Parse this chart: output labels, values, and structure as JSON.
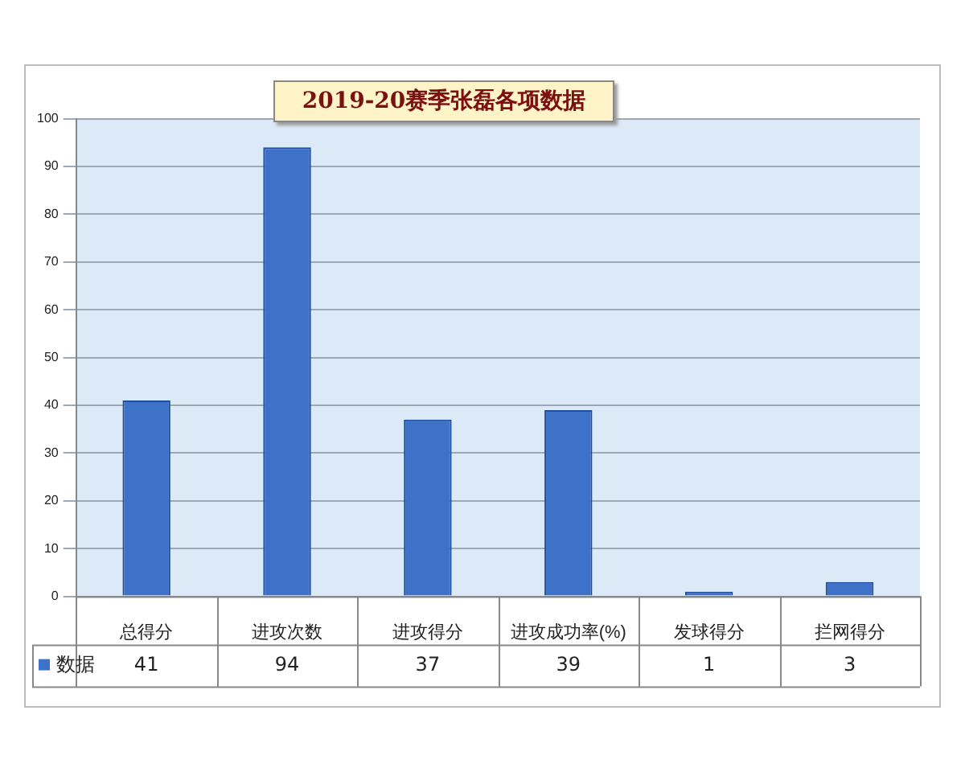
{
  "chart_data": {
    "type": "bar",
    "title": "2019-20赛季张磊各项数据",
    "categories": [
      "总得分",
      "进攻次数",
      "进攻得分",
      "进攻成功率(%)",
      "发球得分",
      "拦网得分"
    ],
    "series": [
      {
        "name": "数据",
        "color": "#3d72c8",
        "values": [
          41,
          94,
          37,
          39,
          1,
          3
        ]
      }
    ],
    "ylim": [
      0,
      100
    ],
    "yticks": [
      0,
      10,
      20,
      30,
      40,
      50,
      60,
      70,
      80,
      90,
      100
    ],
    "grid": "y",
    "legend": "bottom",
    "data_labels": true
  }
}
